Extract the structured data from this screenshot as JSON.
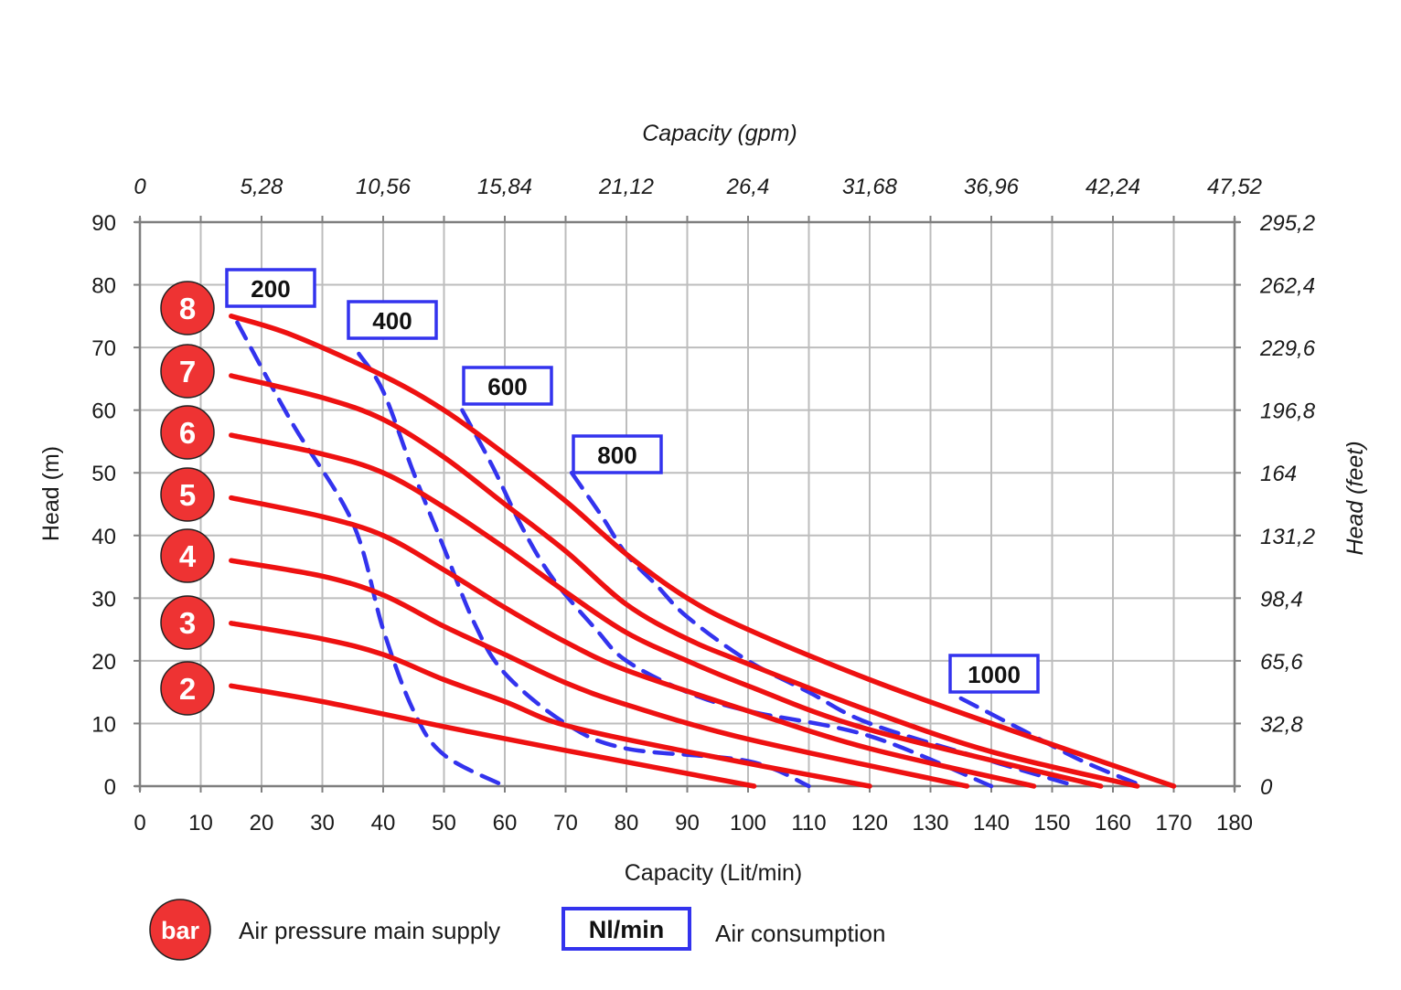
{
  "chart_data": {
    "type": "line",
    "title": "",
    "x_axis": {
      "label": "Capacity (Lit/min)",
      "range": [
        0,
        180
      ],
      "ticks": [
        "0",
        "10",
        "20",
        "30",
        "40",
        "50",
        "60",
        "70",
        "80",
        "90",
        "100",
        "110",
        "120",
        "130",
        "140",
        "150",
        "160",
        "170",
        "180"
      ]
    },
    "x2_axis": {
      "label": "Capacity (gpm)",
      "ticks": [
        "0",
        "5,28",
        "10,56",
        "15,84",
        "21,12",
        "26,4",
        "31,68",
        "36,96",
        "42,24",
        "47,52"
      ]
    },
    "y_axis": {
      "label": "Head (m)",
      "range": [
        0,
        90
      ],
      "ticks": [
        "0",
        "10",
        "20",
        "30",
        "40",
        "50",
        "60",
        "70",
        "80",
        "90"
      ]
    },
    "y2_axis": {
      "label": "Head (feet)",
      "ticks": [
        "0",
        "32,8",
        "65,6",
        "98,4",
        "131,2",
        "164",
        "196,8",
        "229,6",
        "262,4",
        "295,2"
      ]
    },
    "grid": true,
    "pressure_curves": [
      {
        "name": "2",
        "points": [
          [
            15,
            16
          ],
          [
            30,
            13.5
          ],
          [
            50,
            9.5
          ],
          [
            70,
            5.7
          ],
          [
            101,
            0
          ]
        ]
      },
      {
        "name": "3",
        "points": [
          [
            15,
            26
          ],
          [
            30,
            23.5
          ],
          [
            40,
            21
          ],
          [
            50,
            17
          ],
          [
            60,
            13.5
          ],
          [
            70,
            9.7
          ],
          [
            90,
            5.5
          ],
          [
            120,
            0
          ]
        ]
      },
      {
        "name": "4",
        "points": [
          [
            15,
            36
          ],
          [
            30,
            33.5
          ],
          [
            40,
            30.5
          ],
          [
            50,
            25.5
          ],
          [
            60,
            21
          ],
          [
            70,
            16.5
          ],
          [
            80,
            13
          ],
          [
            100,
            7.5
          ],
          [
            136,
            0
          ]
        ]
      },
      {
        "name": "5",
        "points": [
          [
            15,
            46
          ],
          [
            30,
            43
          ],
          [
            40,
            40
          ],
          [
            50,
            34.5
          ],
          [
            60,
            28.5
          ],
          [
            70,
            23
          ],
          [
            80,
            18.5
          ],
          [
            100,
            12
          ],
          [
            120,
            6
          ],
          [
            147,
            0
          ]
        ]
      },
      {
        "name": "6",
        "points": [
          [
            15,
            56
          ],
          [
            30,
            53
          ],
          [
            40,
            50
          ],
          [
            50,
            44.5
          ],
          [
            60,
            38
          ],
          [
            70,
            31
          ],
          [
            80,
            24.5
          ],
          [
            90,
            20
          ],
          [
            100,
            16
          ],
          [
            120,
            9
          ],
          [
            158,
            0
          ]
        ]
      },
      {
        "name": "7",
        "points": [
          [
            15,
            65.5
          ],
          [
            30,
            62
          ],
          [
            40,
            58.5
          ],
          [
            50,
            52.5
          ],
          [
            60,
            45
          ],
          [
            70,
            37.5
          ],
          [
            80,
            29
          ],
          [
            90,
            23.5
          ],
          [
            100,
            19.5
          ],
          [
            120,
            12
          ],
          [
            140,
            5.5
          ],
          [
            164,
            0
          ]
        ]
      },
      {
        "name": "8",
        "points": [
          [
            15,
            75
          ],
          [
            25,
            72
          ],
          [
            40,
            65.5
          ],
          [
            50,
            60
          ],
          [
            60,
            53
          ],
          [
            70,
            45.5
          ],
          [
            80,
            37
          ],
          [
            90,
            30
          ],
          [
            100,
            25
          ],
          [
            120,
            17
          ],
          [
            140,
            10
          ],
          [
            170,
            0
          ]
        ]
      }
    ],
    "air_consumption_curves": [
      {
        "name": "200",
        "points": [
          [
            16,
            74
          ],
          [
            25,
            58
          ],
          [
            35,
            42
          ],
          [
            40,
            25
          ],
          [
            45,
            12
          ],
          [
            50,
            5
          ],
          [
            60,
            0
          ]
        ]
      },
      {
        "name": "400",
        "points": [
          [
            36,
            69
          ],
          [
            40,
            63
          ],
          [
            45,
            50
          ],
          [
            50,
            38
          ],
          [
            55,
            26
          ],
          [
            60,
            18
          ],
          [
            70,
            10
          ],
          [
            80,
            6
          ],
          [
            100,
            4
          ],
          [
            110,
            0
          ]
        ]
      },
      {
        "name": "600",
        "points": [
          [
            53,
            60
          ],
          [
            58,
            51
          ],
          [
            63,
            41
          ],
          [
            68,
            33
          ],
          [
            75,
            25
          ],
          [
            80,
            20
          ],
          [
            90,
            15
          ],
          [
            100,
            12
          ],
          [
            120,
            8
          ],
          [
            140,
            0
          ]
        ]
      },
      {
        "name": "800",
        "points": [
          [
            71,
            50
          ],
          [
            76,
            43
          ],
          [
            80,
            37
          ],
          [
            85,
            32
          ],
          [
            90,
            27
          ],
          [
            100,
            20
          ],
          [
            110,
            15
          ],
          [
            120,
            10
          ],
          [
            140,
            4
          ],
          [
            154,
            0
          ]
        ]
      },
      {
        "name": "1000",
        "points": [
          [
            135,
            14
          ],
          [
            145,
            9
          ],
          [
            155,
            4
          ],
          [
            165,
            0
          ]
        ]
      }
    ],
    "pressure_badges": [
      "8",
      "7",
      "6",
      "5",
      "4",
      "3",
      "2"
    ],
    "colors": {
      "pressure": "#ee1111",
      "air": "#3333ee",
      "badge_fill": "#ee3333",
      "grid": "#bdbdbd",
      "axis": "#7f7f7f"
    },
    "legend": [
      {
        "symbol": "bar",
        "label": "Air pressure main supply"
      },
      {
        "symbol": "Nl/min",
        "label": "Air consumption"
      }
    ]
  }
}
